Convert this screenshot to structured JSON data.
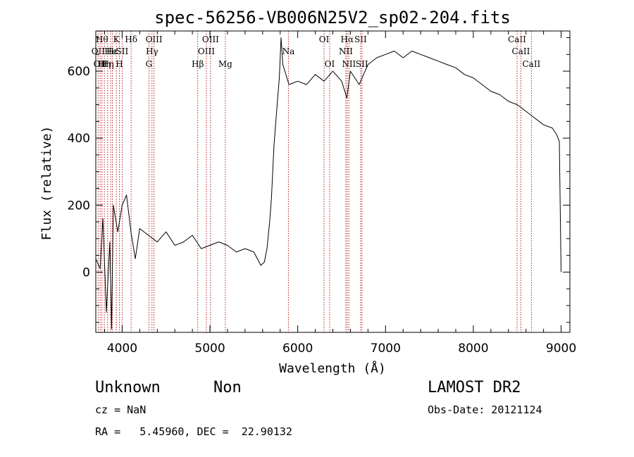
{
  "chart_data": {
    "type": "line",
    "title": "spec-56256-VB006N25V2_sp02-204.fits",
    "xlabel": "Wavelength (Å)",
    "ylabel": "Flux (relative)",
    "xlim": [
      3700,
      9100
    ],
    "ylim": [
      -180,
      720
    ],
    "xticks": [
      4000,
      5000,
      6000,
      7000,
      8000,
      9000
    ],
    "yticks": [
      0,
      200,
      400,
      600
    ],
    "grid": false,
    "series": [
      {
        "color": "#000000",
        "points": [
          [
            3700,
            40
          ],
          [
            3750,
            10
          ],
          [
            3780,
            160
          ],
          [
            3820,
            -120
          ],
          [
            3860,
            90
          ],
          [
            3880,
            -170
          ],
          [
            3900,
            200
          ],
          [
            3950,
            120
          ],
          [
            4000,
            200
          ],
          [
            4050,
            230
          ],
          [
            4100,
            120
          ],
          [
            4150,
            40
          ],
          [
            4200,
            130
          ],
          [
            4300,
            110
          ],
          [
            4400,
            90
          ],
          [
            4500,
            120
          ],
          [
            4600,
            80
          ],
          [
            4700,
            90
          ],
          [
            4800,
            110
          ],
          [
            4900,
            70
          ],
          [
            5000,
            80
          ],
          [
            5100,
            90
          ],
          [
            5200,
            80
          ],
          [
            5300,
            60
          ],
          [
            5400,
            70
          ],
          [
            5500,
            60
          ],
          [
            5580,
            20
          ],
          [
            5620,
            30
          ],
          [
            5650,
            70
          ],
          [
            5680,
            150
          ],
          [
            5700,
            220
          ],
          [
            5730,
            380
          ],
          [
            5760,
            480
          ],
          [
            5790,
            580
          ],
          [
            5810,
            700
          ],
          [
            5830,
            620
          ],
          [
            5900,
            560
          ],
          [
            6000,
            570
          ],
          [
            6100,
            560
          ],
          [
            6200,
            590
          ],
          [
            6300,
            570
          ],
          [
            6400,
            600
          ],
          [
            6500,
            570
          ],
          [
            6560,
            520
          ],
          [
            6600,
            600
          ],
          [
            6700,
            560
          ],
          [
            6800,
            620
          ],
          [
            6900,
            640
          ],
          [
            7000,
            650
          ],
          [
            7100,
            660
          ],
          [
            7200,
            640
          ],
          [
            7300,
            660
          ],
          [
            7400,
            650
          ],
          [
            7500,
            640
          ],
          [
            7600,
            630
          ],
          [
            7700,
            620
          ],
          [
            7800,
            610
          ],
          [
            7900,
            590
          ],
          [
            8000,
            580
          ],
          [
            8100,
            560
          ],
          [
            8200,
            540
          ],
          [
            8300,
            530
          ],
          [
            8400,
            510
          ],
          [
            8500,
            500
          ],
          [
            8600,
            480
          ],
          [
            8700,
            460
          ],
          [
            8800,
            440
          ],
          [
            8900,
            430
          ],
          [
            8950,
            410
          ],
          [
            8980,
            390
          ],
          [
            9000,
            0
          ]
        ]
      }
    ],
    "lines": [
      {
        "wl": 3727,
        "label": "OII",
        "row": 2
      },
      {
        "wl": 3750,
        "label": "OII",
        "row": 3
      },
      {
        "wl": 3770,
        "label": "Hθ",
        "row": 1
      },
      {
        "wl": 3798,
        "label": "Hη",
        "row": 3
      },
      {
        "wl": 3835,
        "label": "Hη",
        "row": 3
      },
      {
        "wl": 3869,
        "label": "He",
        "row": 2
      },
      {
        "wl": 3889,
        "label": "Hε",
        "row": 2
      },
      {
        "wl": 3934,
        "label": "K",
        "row": 1
      },
      {
        "wl": 3969,
        "label": "H",
        "row": 3
      },
      {
        "wl": 4000,
        "label": "SII",
        "row": 2
      },
      {
        "wl": 4102,
        "label": "Hδ",
        "row": 1
      },
      {
        "wl": 4305,
        "label": "G",
        "row": 3
      },
      {
        "wl": 4340,
        "label": "Hγ",
        "row": 2
      },
      {
        "wl": 4363,
        "label": "OIII",
        "row": 1
      },
      {
        "wl": 4861,
        "label": "Hβ",
        "row": 3
      },
      {
        "wl": 4959,
        "label": "OIII",
        "row": 2
      },
      {
        "wl": 5007,
        "label": "OIII",
        "row": 1
      },
      {
        "wl": 5175,
        "label": "Mg",
        "row": 3
      },
      {
        "wl": 5894,
        "label": "Na",
        "row": 2
      },
      {
        "wl": 6300,
        "label": "OI",
        "row": 1
      },
      {
        "wl": 6364,
        "label": "OI",
        "row": 3
      },
      {
        "wl": 6548,
        "label": "NII",
        "row": 2
      },
      {
        "wl": 6563,
        "label": "Hα",
        "row": 1
      },
      {
        "wl": 6583,
        "label": "NII",
        "row": 3
      },
      {
        "wl": 6716,
        "label": "SII",
        "row": 1
      },
      {
        "wl": 6731,
        "label": "SII",
        "row": 3
      },
      {
        "wl": 8498,
        "label": "CaII",
        "row": 1
      },
      {
        "wl": 8542,
        "label": "CaII",
        "row": 2
      },
      {
        "wl": 8662,
        "label": "CaII",
        "row": 3
      }
    ]
  },
  "info": {
    "class": "Unknown",
    "subclass": "Non",
    "survey": "LAMOST DR2",
    "cz": "cz = NaN",
    "obs_date": "Obs-Date: 20121124",
    "coords": "RA =   5.45960, DEC =  22.90132"
  }
}
